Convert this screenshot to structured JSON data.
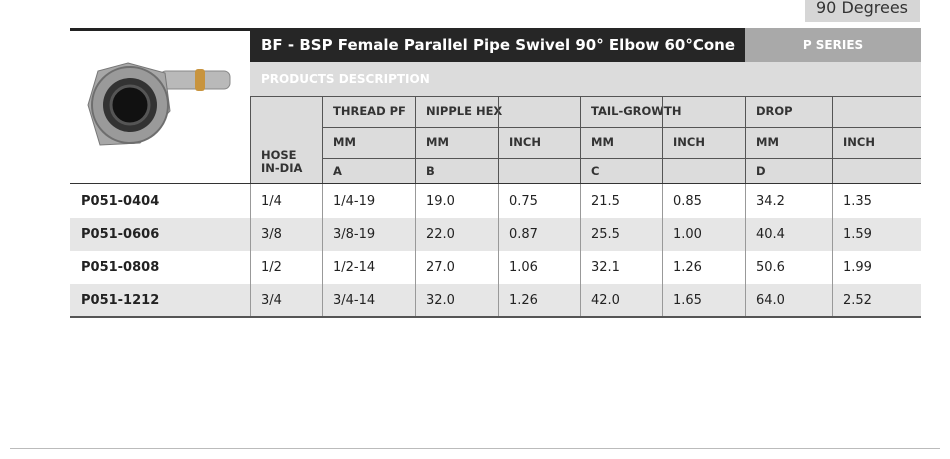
{
  "header": {
    "tab": "90 Degrees",
    "title": "BF - BSP Female Parallel Pipe Swivel 90° Elbow 60°Cone",
    "series": "P SERIES",
    "description": "PRODUCTS DESCRIPTION"
  },
  "table": {
    "hose_label": "HOSE\nIN-DIA",
    "groups": [
      {
        "label": "THREAD PF",
        "units": [
          {
            "unit": "MM",
            "letter": "A"
          }
        ]
      },
      {
        "label": "NIPPLE HEX",
        "units": [
          {
            "unit": "MM",
            "letter": "B"
          },
          {
            "unit": "INCH"
          }
        ]
      },
      {
        "label": "TAIL-GROWTH",
        "units": [
          {
            "unit": "MM",
            "letter": "C"
          },
          {
            "unit": "INCH"
          }
        ]
      },
      {
        "label": "DROP",
        "units": [
          {
            "unit": "MM",
            "letter": "D"
          },
          {
            "unit": "INCH"
          }
        ]
      }
    ],
    "rows": [
      [
        "P051-0404",
        "1/4",
        "1/4-19",
        "19.0",
        "0.75",
        "21.5",
        "0.85",
        "34.2",
        "1.35"
      ],
      [
        "P051-0606",
        "3/8",
        "3/8-19",
        "22.0",
        "0.87",
        "25.5",
        "1.00",
        "40.4",
        "1.59"
      ],
      [
        "P051-0808",
        "1/2",
        "1/2-14",
        "27.0",
        "1.06",
        "32.1",
        "1.26",
        "50.6",
        "1.99"
      ],
      [
        "P051-1212",
        "3/4",
        "3/4-14",
        "32.0",
        "1.26",
        "42.0",
        "1.65",
        "64.0",
        "2.52"
      ]
    ]
  }
}
